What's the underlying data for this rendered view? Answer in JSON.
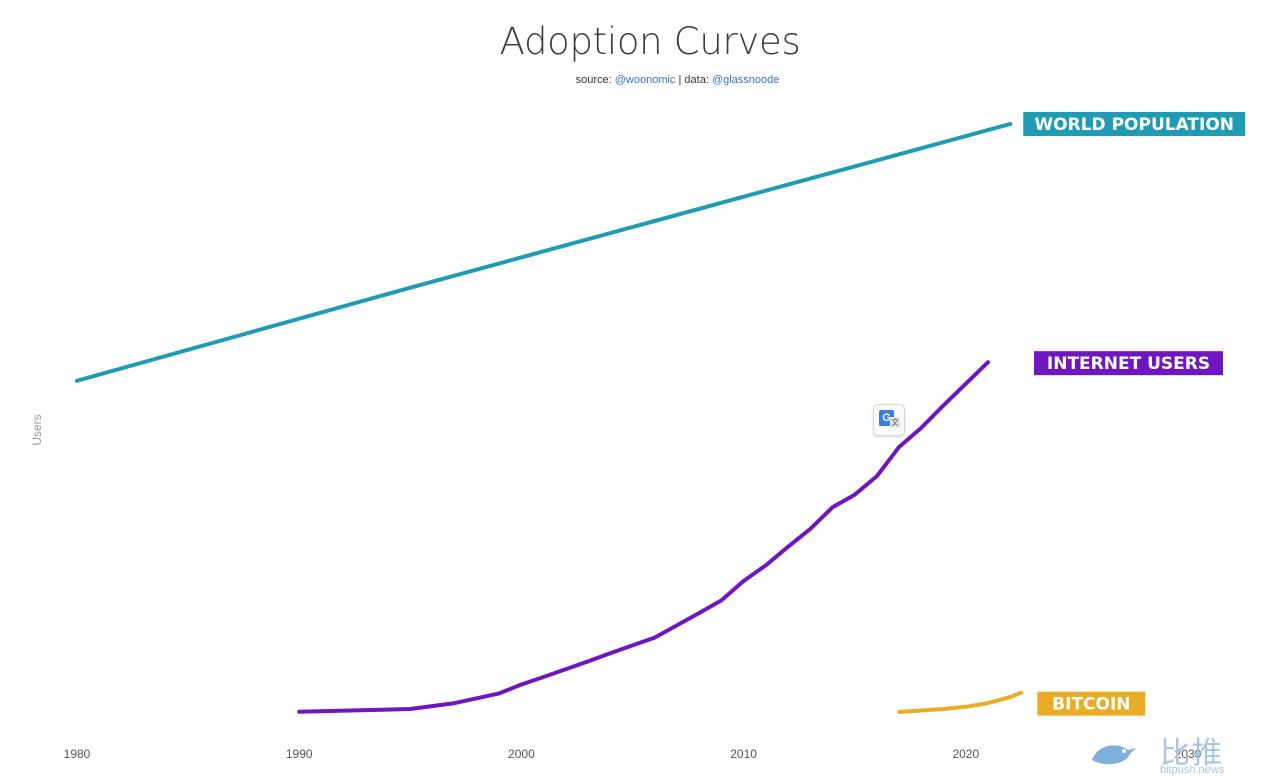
{
  "page": {
    "title": "Adoption Curves",
    "source_prefix": "source: ",
    "source_handle": "@woonomic",
    "separator": " | ",
    "data_prefix": "data: ",
    "data_handle": "@glassnoode"
  },
  "chart_data": {
    "type": "line",
    "title": "Adoption Curves",
    "xlabel": "",
    "ylabel": "Users",
    "xlim": [
      1980,
      2030
    ],
    "x_ticks": [
      1980,
      1990,
      2000,
      2010,
      2020,
      2030
    ],
    "grid": false,
    "legend": "inline labels at line ends (right)",
    "series": [
      {
        "name": "WORLD POPULATION",
        "color": "#1f9bb4",
        "points": [
          [
            1980,
            4.45
          ],
          [
            1995,
            5.7
          ],
          [
            2022,
            7.9
          ]
        ]
      },
      {
        "name": "INTERNET USERS",
        "color": "#6f16c0",
        "points": [
          [
            1990,
            0.003
          ],
          [
            1995,
            0.04
          ],
          [
            1997,
            0.12
          ],
          [
            1999,
            0.25
          ],
          [
            2000,
            0.37
          ],
          [
            2001,
            0.47
          ],
          [
            2003,
            0.68
          ],
          [
            2004,
            0.79
          ],
          [
            2006,
            1.0
          ],
          [
            2008,
            1.33
          ],
          [
            2009,
            1.5
          ],
          [
            2010,
            1.76
          ],
          [
            2011,
            1.97
          ],
          [
            2012,
            2.22
          ],
          [
            2013,
            2.46
          ],
          [
            2014,
            2.75
          ],
          [
            2015,
            2.92
          ],
          [
            2016,
            3.17
          ],
          [
            2017,
            3.56
          ],
          [
            2018,
            3.82
          ],
          [
            2019,
            4.12
          ],
          [
            2021,
            4.7
          ]
        ]
      },
      {
        "name": "BITCOIN",
        "color": "#e9ac24",
        "points": [
          [
            2017,
            0.0
          ],
          [
            2018,
            0.02
          ],
          [
            2019,
            0.04
          ],
          [
            2020,
            0.07
          ],
          [
            2021,
            0.12
          ],
          [
            2022,
            0.2
          ],
          [
            2022.5,
            0.26
          ]
        ]
      }
    ]
  },
  "overlay": {
    "translate_icon": "google-translate-icon",
    "translate_letter": "G",
    "translate_sub": "文",
    "watermark_icon": "bird-logo-icon",
    "watermark_text": "比推",
    "watermark_url": "bitpush.news"
  }
}
